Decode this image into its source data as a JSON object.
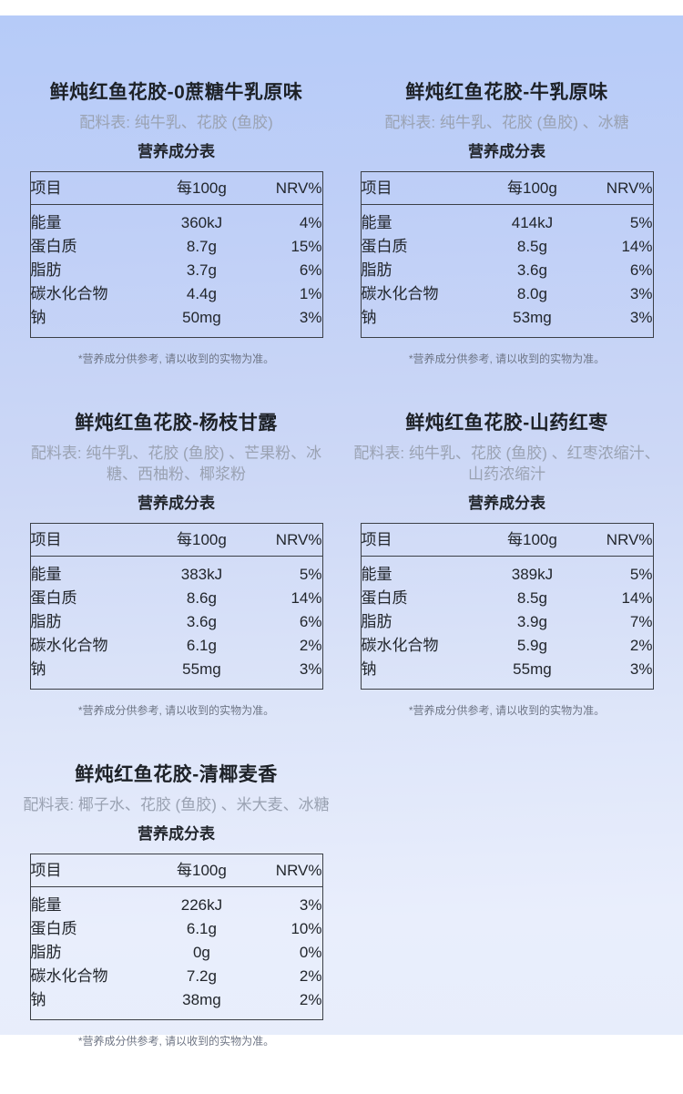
{
  "page": {
    "background_top_color": "#b6cbf8",
    "background_bottom_color": "#e7edfb",
    "text_color": "#22262c",
    "muted_text_color": "#9aa2b2",
    "note_text_color": "#6e7585",
    "table_border_color": "#3b3f46",
    "disclaimer": "*营养成分供参考, 请以收到的实物为准。"
  },
  "table_headers": [
    "项目",
    "每100g",
    "NRV%"
  ],
  "products": [
    {
      "title": "鲜炖红鱼花胶-0蔗糖牛乳原味",
      "ingredients": "配料表: 纯牛乳、花胶 (鱼胶)",
      "table_title": "营养成分表",
      "rows": [
        [
          "能量",
          "360kJ",
          "4%"
        ],
        [
          "蛋白质",
          "8.7g",
          "15%"
        ],
        [
          "脂肪",
          "3.7g",
          "6%"
        ],
        [
          "碳水化合物",
          "4.4g",
          "1%"
        ],
        [
          "钠",
          "50mg",
          "3%"
        ]
      ]
    },
    {
      "title": "鲜炖红鱼花胶-牛乳原味",
      "ingredients": "配料表: 纯牛乳、花胶 (鱼胶) 、冰糖",
      "table_title": "营养成分表",
      "rows": [
        [
          "能量",
          "414kJ",
          "5%"
        ],
        [
          "蛋白质",
          "8.5g",
          "14%"
        ],
        [
          "脂肪",
          "3.6g",
          "6%"
        ],
        [
          "碳水化合物",
          "8.0g",
          "3%"
        ],
        [
          "钠",
          "53mg",
          "3%"
        ]
      ]
    },
    {
      "title": "鲜炖红鱼花胶-杨枝甘露",
      "ingredients": "配料表: 纯牛乳、花胶 (鱼胶) 、芒果粉、冰糖、西柚粉、椰浆粉",
      "table_title": "营养成分表",
      "rows": [
        [
          "能量",
          "383kJ",
          "5%"
        ],
        [
          "蛋白质",
          "8.6g",
          "14%"
        ],
        [
          "脂肪",
          "3.6g",
          "6%"
        ],
        [
          "碳水化合物",
          "6.1g",
          "2%"
        ],
        [
          "钠",
          "55mg",
          "3%"
        ]
      ]
    },
    {
      "title": "鲜炖红鱼花胶-山药红枣",
      "ingredients": "配料表: 纯牛乳、花胶 (鱼胶) 、红枣浓缩汁、山药浓缩汁",
      "table_title": "营养成分表",
      "rows": [
        [
          "能量",
          "389kJ",
          "5%"
        ],
        [
          "蛋白质",
          "8.5g",
          "14%"
        ],
        [
          "脂肪",
          "3.9g",
          "7%"
        ],
        [
          "碳水化合物",
          "5.9g",
          "2%"
        ],
        [
          "钠",
          "55mg",
          "3%"
        ]
      ]
    },
    {
      "title": "鲜炖红鱼花胶-清椰麦香",
      "ingredients": "配料表: 椰子水、花胶 (鱼胶) 、米大麦、冰糖",
      "table_title": "营养成分表",
      "rows": [
        [
          "能量",
          "226kJ",
          "3%"
        ],
        [
          "蛋白质",
          "6.1g",
          "10%"
        ],
        [
          "脂肪",
          "0g",
          "0%"
        ],
        [
          "碳水化合物",
          "7.2g",
          "2%"
        ],
        [
          "钠",
          "38mg",
          "2%"
        ]
      ]
    }
  ]
}
